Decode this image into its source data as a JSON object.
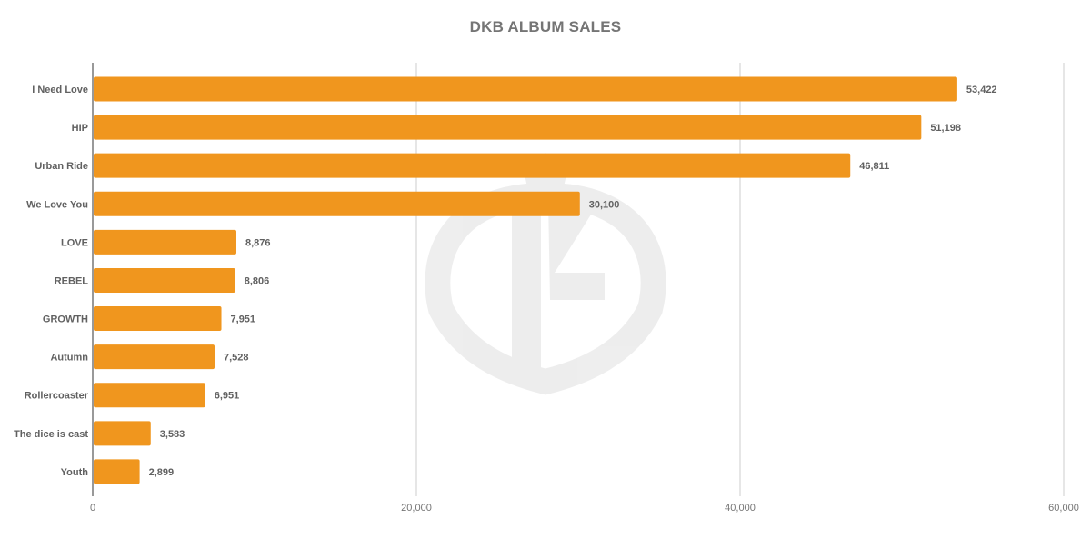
{
  "chart_data": {
    "type": "bar",
    "orientation": "horizontal",
    "title": "DKB ALBUM SALES",
    "xlabel": "",
    "ylabel": "",
    "categories": [
      "I Need Love",
      "HIP",
      "Urban Ride",
      "We Love You",
      "LOVE",
      "REBEL",
      "GROWTH",
      "Autumn",
      "Rollercoaster",
      "The dice is cast",
      "Youth"
    ],
    "values": [
      53422,
      51198,
      46811,
      30100,
      8876,
      8806,
      7951,
      7528,
      6951,
      3583,
      2899
    ],
    "value_labels": [
      "53,422",
      "51,198",
      "46,811",
      "30,100",
      "8,876",
      "8,806",
      "7,951",
      "7,528",
      "6,951",
      "3,583",
      "2,899"
    ],
    "xlim": [
      0,
      60000
    ],
    "x_ticks": [
      0,
      20000,
      40000,
      60000
    ],
    "x_tick_labels": [
      "0",
      "20,000",
      "40,000",
      "60,000"
    ],
    "grid": true,
    "legend": "none",
    "bar_color": "#F0961E",
    "watermark": "KS"
  }
}
